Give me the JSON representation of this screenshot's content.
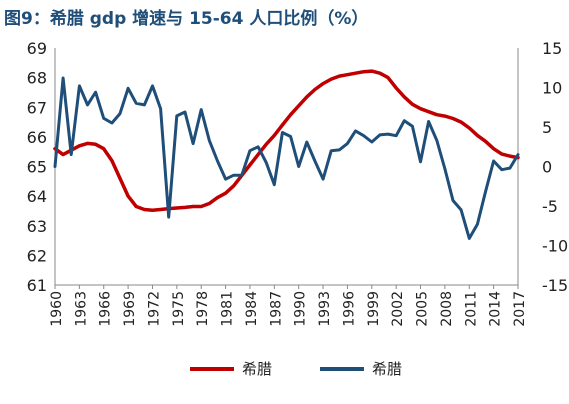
{
  "title": "图9：希腊 gdp 增速与 15-64 人口比例（%）",
  "colors": {
    "population": "#C00000",
    "gdp": "#1F4E79",
    "axis": "#888888",
    "title": "#1F4E79"
  },
  "chart_data": {
    "type": "line",
    "title": "图9：希腊 gdp 增速与 15-64 人口比例（%）",
    "grid": false,
    "legend_position": "bottom",
    "x": [
      1960,
      1961,
      1962,
      1963,
      1964,
      1965,
      1966,
      1967,
      1968,
      1969,
      1970,
      1971,
      1972,
      1973,
      1974,
      1975,
      1976,
      1977,
      1978,
      1979,
      1980,
      1981,
      1982,
      1983,
      1984,
      1985,
      1986,
      1987,
      1988,
      1989,
      1990,
      1991,
      1992,
      1993,
      1994,
      1995,
      1996,
      1997,
      1998,
      1999,
      2000,
      2001,
      2002,
      2003,
      2004,
      2005,
      2006,
      2007,
      2008,
      2009,
      2010,
      2011,
      2012,
      2013,
      2014,
      2015,
      2016,
      2017
    ],
    "x_tick_labels": [
      "1960",
      "1963",
      "1966",
      "1969",
      "1972",
      "1975",
      "1978",
      "1981",
      "1984",
      "1987",
      "1990",
      "1993",
      "1996",
      "1999",
      "2002",
      "2005",
      "2008",
      "2011",
      "2014",
      "2017"
    ],
    "y_left": {
      "ylim": [
        61,
        69
      ],
      "ticks": [
        61,
        62,
        63,
        64,
        65,
        66,
        67,
        68,
        69
      ]
    },
    "y_right": {
      "ylim": [
        -15,
        15
      ],
      "ticks": [
        -15,
        -10,
        -5,
        0,
        5,
        10,
        15
      ]
    },
    "series": [
      {
        "name": "希腊",
        "axis": "left",
        "color": "#C00000",
        "values": [
          65.6,
          65.4,
          65.55,
          65.7,
          65.78,
          65.75,
          65.6,
          65.2,
          64.6,
          64.0,
          63.65,
          63.55,
          63.52,
          63.55,
          63.58,
          63.6,
          63.62,
          63.65,
          63.65,
          63.75,
          63.95,
          64.1,
          64.35,
          64.7,
          65.05,
          65.4,
          65.75,
          66.05,
          66.4,
          66.75,
          67.05,
          67.35,
          67.6,
          67.8,
          67.95,
          68.05,
          68.1,
          68.15,
          68.2,
          68.22,
          68.15,
          68.0,
          67.65,
          67.35,
          67.1,
          66.95,
          66.85,
          66.75,
          66.7,
          66.62,
          66.5,
          66.3,
          66.05,
          65.85,
          65.6,
          65.42,
          65.35,
          65.3
        ]
      },
      {
        "name": "希腊",
        "axis": "right",
        "color": "#1F4E79",
        "values": [
          0.0,
          11.2,
          1.5,
          10.2,
          7.8,
          9.4,
          6.1,
          5.5,
          6.7,
          9.9,
          8.0,
          7.8,
          10.2,
          7.3,
          -6.4,
          6.4,
          6.9,
          2.9,
          7.2,
          3.3,
          0.7,
          -1.6,
          -1.1,
          -1.1,
          2.0,
          2.5,
          0.5,
          -2.3,
          4.3,
          3.8,
          0.0,
          3.1,
          0.7,
          -1.6,
          2.0,
          2.1,
          2.9,
          4.5,
          3.9,
          3.1,
          4.0,
          4.1,
          3.9,
          5.8,
          5.1,
          0.6,
          5.7,
          3.3,
          -0.3,
          -4.3,
          -5.5,
          -9.1,
          -7.3,
          -3.2,
          0.7,
          -0.4,
          -0.2,
          1.5
        ]
      }
    ]
  },
  "legend": [
    {
      "label": "希腊",
      "color": "#C00000"
    },
    {
      "label": "希腊",
      "color": "#1F4E79"
    }
  ]
}
